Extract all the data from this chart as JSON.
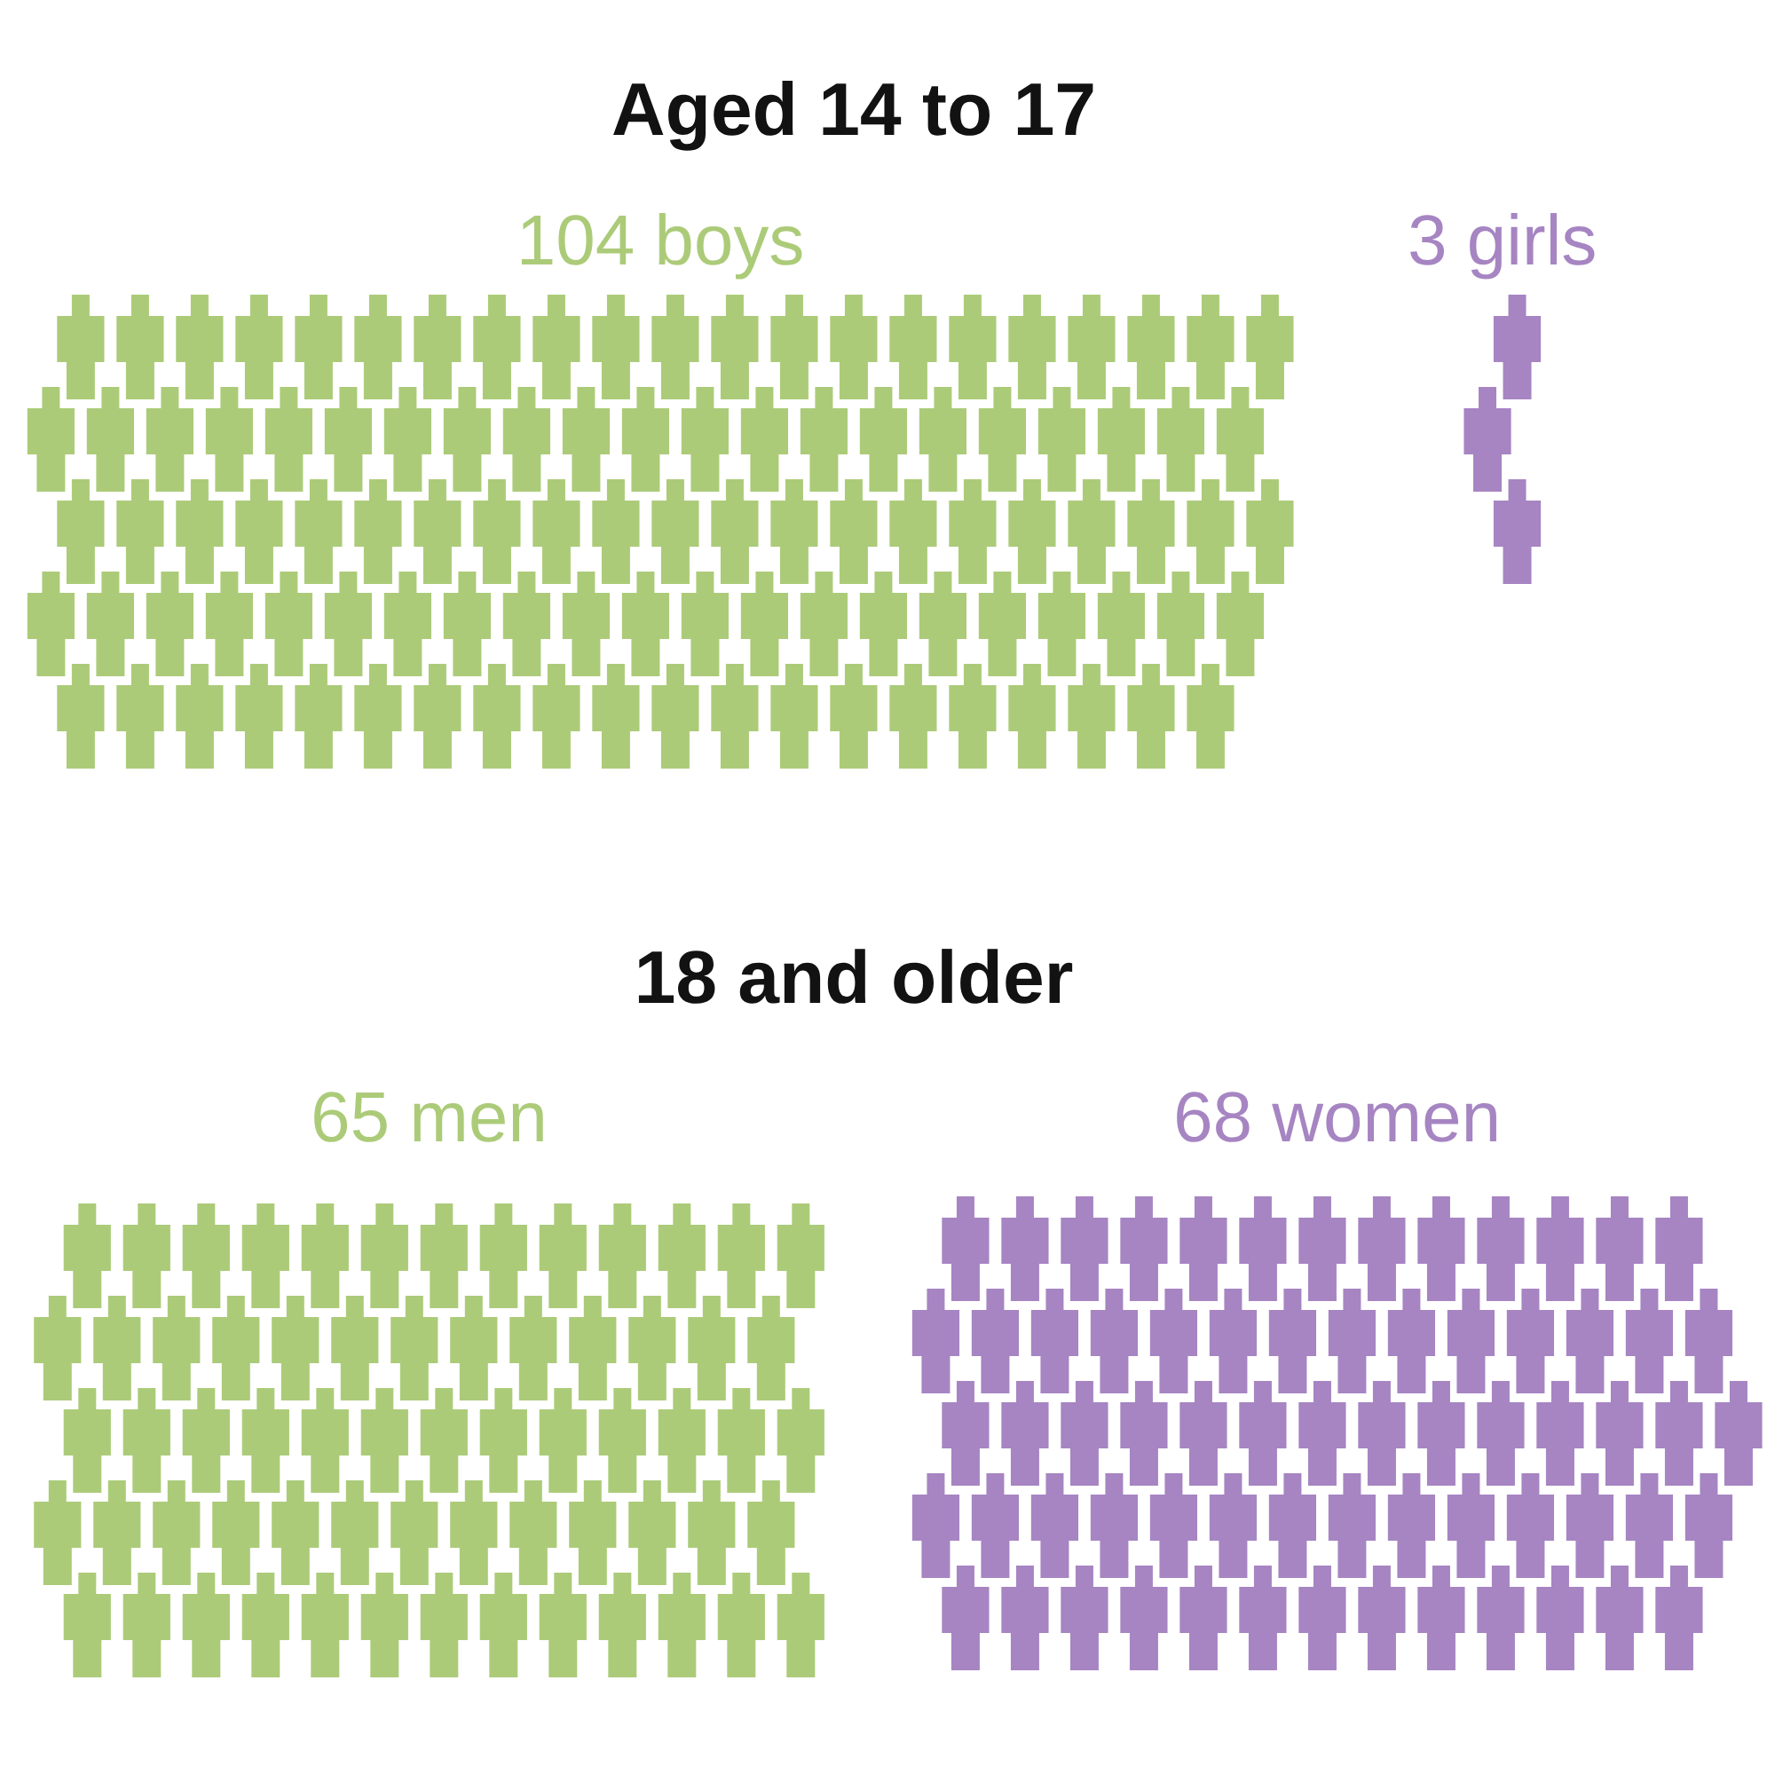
{
  "chart_data": [
    {
      "type": "other",
      "title": "Aged 14 to 17",
      "values": [
        104,
        3
      ],
      "value_labels": [
        "104 boys",
        "3 girls"
      ],
      "colors": [
        "#accb79",
        "#a685c2"
      ]
    },
    {
      "type": "other",
      "title": "18 and older",
      "values": [
        65,
        68
      ],
      "value_labels": [
        "65 men",
        "68 women"
      ],
      "colors": [
        "#accb79",
        "#a685c2"
      ]
    }
  ]
}
